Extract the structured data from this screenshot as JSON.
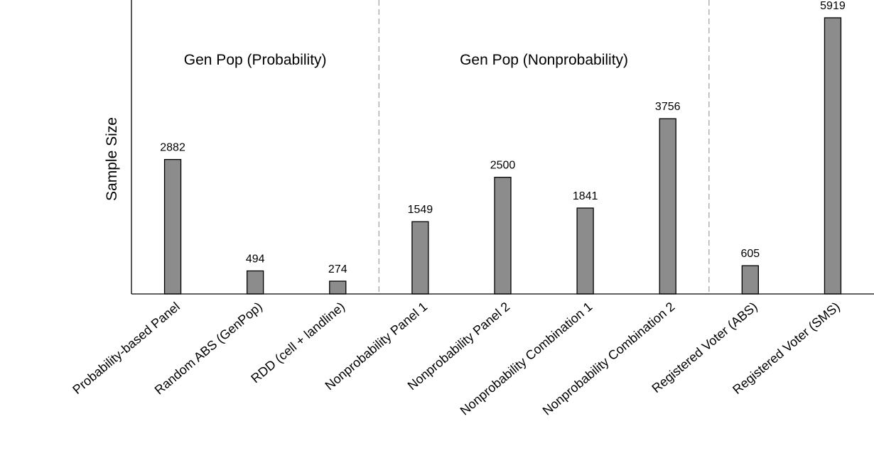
{
  "chart_data": {
    "type": "bar",
    "title": "",
    "xlabel": "",
    "ylabel": "Sample Size",
    "ylim": [
      0,
      6300
    ],
    "grid": false,
    "categories": [
      "Probability-based Panel",
      "Random ABS (GenPop)",
      "RDD (cell + landline)",
      "Nonprobability Panel 1",
      "Nonprobability Panel 2",
      "Nonprobability Combination 1",
      "Nonprobability Combination 2",
      "Registered Voter (ABS)",
      "Registered Voter (SMS)"
    ],
    "values": [
      2882,
      494,
      274,
      1549,
      2500,
      1841,
      3756,
      605,
      5919
    ],
    "value_labels": [
      "2882",
      "494",
      "274",
      "1549",
      "2500",
      "1841",
      "3756",
      "605",
      "5919"
    ],
    "bar_color": "#8c8c8c",
    "separator_color": "#a6a6a6",
    "groups": [
      {
        "label": "Gen Pop (Probability)",
        "start": 0,
        "end": 2
      },
      {
        "label": "Gen Pop (Nonprobability)",
        "start": 3,
        "end": 6
      },
      {
        "label": "",
        "start": 7,
        "end": 8
      }
    ]
  }
}
